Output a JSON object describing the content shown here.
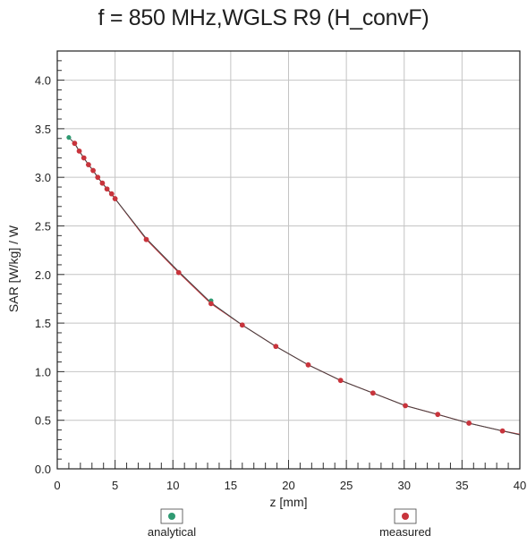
{
  "chart_data": {
    "type": "line",
    "title": "f = 850 MHz,WGLS R9 (H_convF)",
    "xlabel": "z [mm]",
    "ylabel": "SAR [W/kg] / W",
    "xlim": [
      0,
      40
    ],
    "ylim": [
      0,
      4.3
    ],
    "x_ticks": [
      0,
      5,
      10,
      15,
      20,
      25,
      30,
      35,
      40
    ],
    "y_ticks": [
      0.0,
      0.5,
      1.0,
      1.5,
      2.0,
      2.5,
      3.0,
      3.5,
      4.0
    ],
    "x_tick_labels": [
      "0",
      "5",
      "10",
      "15",
      "20",
      "25",
      "30",
      "35",
      "40"
    ],
    "y_tick_labels": [
      "0.0",
      "0.5",
      "1.0",
      "1.5",
      "2.0",
      "2.5",
      "3.0",
      "3.5",
      "4.0"
    ],
    "grid": true,
    "legend": "bottom",
    "series": [
      {
        "name": "analytical",
        "color": "#2f9a72",
        "x": [
          1.0,
          13.3
        ],
        "y": [
          3.41,
          1.73
        ]
      },
      {
        "name": "measured",
        "color": "#c8343c",
        "x": [
          1.5,
          1.9,
          2.3,
          2.7,
          3.1,
          3.5,
          3.9,
          4.3,
          4.7,
          5.0,
          7.7,
          10.5,
          13.3,
          16.0,
          18.9,
          21.7,
          24.5,
          27.3,
          30.1,
          32.9,
          35.6,
          38.5
        ],
        "y": [
          3.35,
          3.27,
          3.2,
          3.13,
          3.07,
          3.0,
          2.94,
          2.88,
          2.83,
          2.78,
          2.36,
          2.02,
          1.7,
          1.48,
          1.26,
          1.07,
          0.91,
          0.78,
          0.65,
          0.56,
          0.47,
          0.39
        ]
      }
    ]
  },
  "legend": {
    "analytical_label": "analytical",
    "measured_label": "measured"
  },
  "colors": {
    "curve": "#444444",
    "grid": "#c4c4c4",
    "frame": "#222222"
  }
}
